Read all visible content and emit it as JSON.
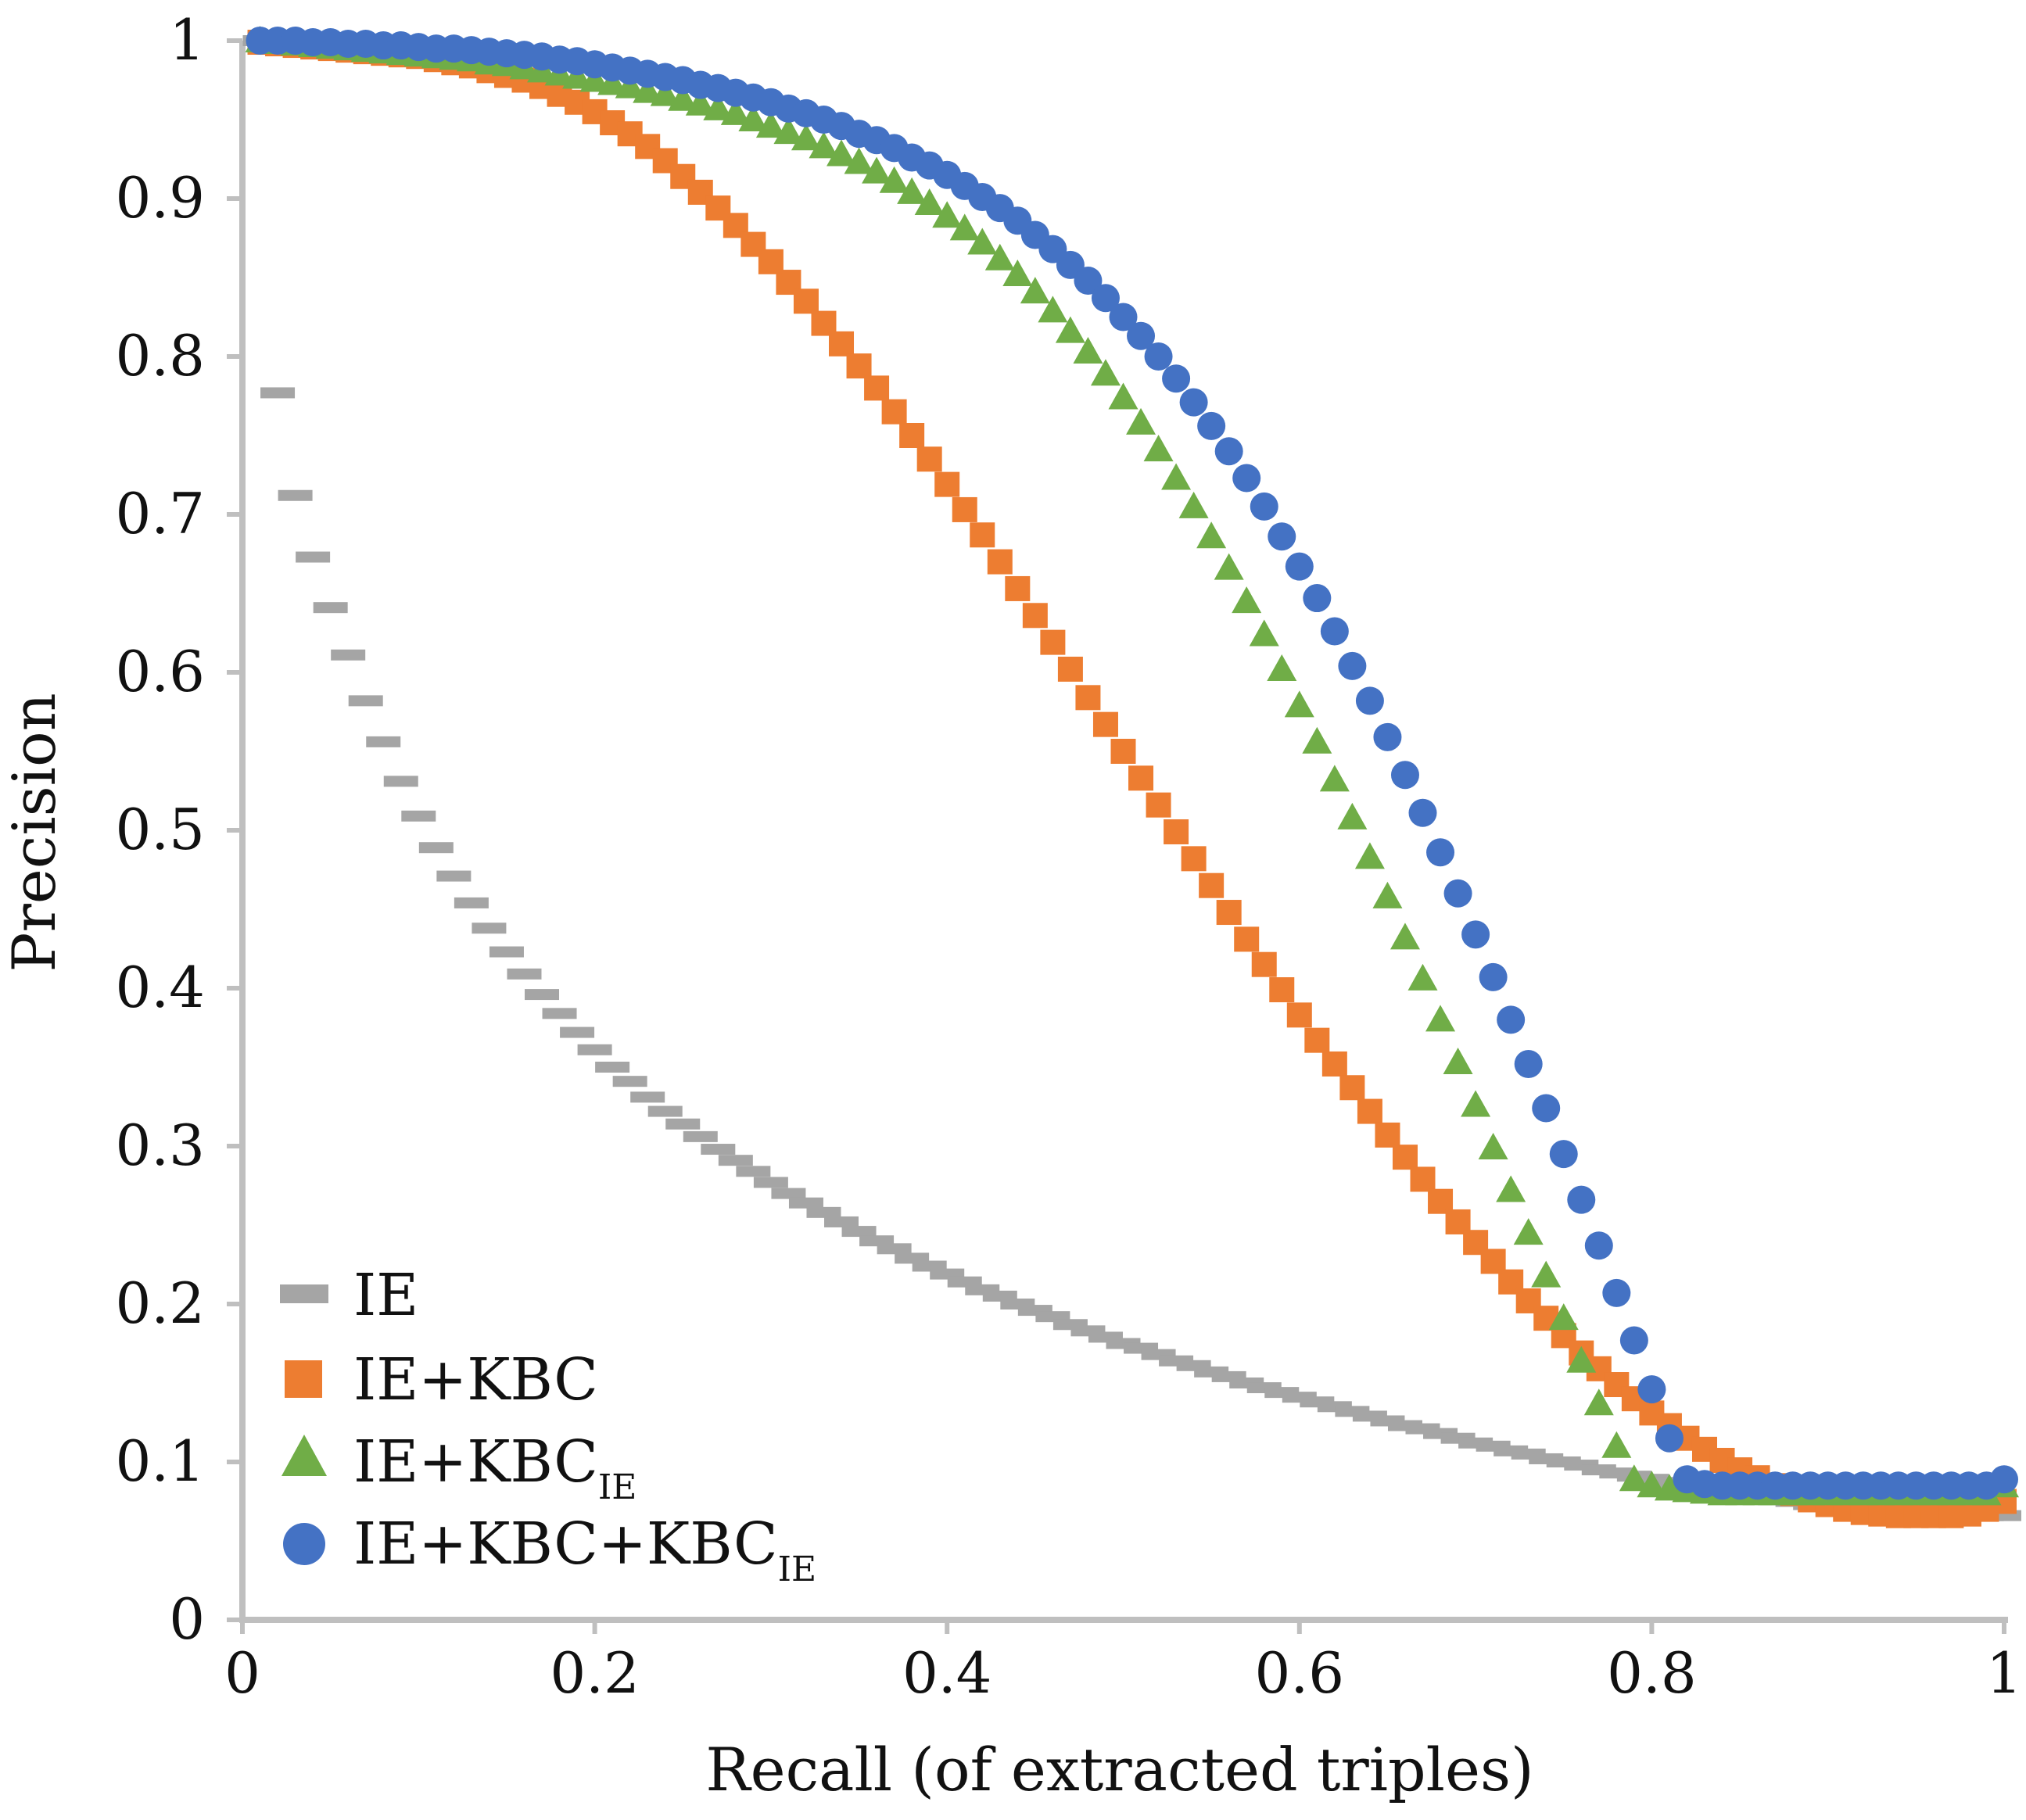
{
  "chart_data": {
    "type": "scatter",
    "title": "",
    "xlabel": "Recall (of extracted triples)",
    "ylabel": "Precision",
    "xlim": [
      0,
      1
    ],
    "ylim": [
      0,
      1
    ],
    "x_ticks": [
      0,
      0.2,
      0.4,
      0.6,
      0.8,
      1
    ],
    "y_ticks": [
      0,
      0.1,
      0.2,
      0.3,
      0.4,
      0.5,
      0.6,
      0.7,
      0.8,
      0.9,
      1
    ],
    "x_tick_labels": [
      "0",
      "0.2",
      "0.4",
      "0.6",
      "0.8",
      "1"
    ],
    "y_tick_labels": [
      "0",
      "0.1",
      "0.2",
      "0.3",
      "0.4",
      "0.5",
      "0.6",
      "0.7",
      "0.8",
      "0.9",
      "1"
    ],
    "grid": false,
    "legend_position": "bottom-left",
    "x": [
      0.01,
      0.02,
      0.03,
      0.04,
      0.05,
      0.06,
      0.07,
      0.08,
      0.09,
      0.1,
      0.11,
      0.12,
      0.13,
      0.14,
      0.15,
      0.16,
      0.17,
      0.18,
      0.19,
      0.2,
      0.21,
      0.22,
      0.23,
      0.24,
      0.25,
      0.26,
      0.27,
      0.28,
      0.29,
      0.3,
      0.31,
      0.32,
      0.33,
      0.34,
      0.35,
      0.36,
      0.37,
      0.38,
      0.39,
      0.4,
      0.41,
      0.42,
      0.43,
      0.44,
      0.45,
      0.46,
      0.47,
      0.48,
      0.49,
      0.5,
      0.51,
      0.52,
      0.53,
      0.54,
      0.55,
      0.56,
      0.57,
      0.58,
      0.59,
      0.6,
      0.61,
      0.62,
      0.63,
      0.64,
      0.65,
      0.66,
      0.67,
      0.68,
      0.69,
      0.7,
      0.71,
      0.72,
      0.73,
      0.74,
      0.75,
      0.76,
      0.77,
      0.78,
      0.79,
      0.8,
      0.81,
      0.82,
      0.83,
      0.84,
      0.85,
      0.86,
      0.87,
      0.88,
      0.89,
      0.9,
      0.91,
      0.92,
      0.93,
      0.94,
      0.95,
      0.96,
      0.97,
      0.98,
      0.99,
      1.0
    ],
    "series": [
      {
        "name": "IE",
        "marker": "dash",
        "color": "#a5a5a5",
        "values": [
          1.0,
          0.777,
          0.712,
          0.673,
          0.641,
          0.611,
          0.582,
          0.556,
          0.531,
          0.509,
          0.489,
          0.471,
          0.454,
          0.438,
          0.423,
          0.409,
          0.396,
          0.384,
          0.372,
          0.361,
          0.35,
          0.341,
          0.331,
          0.322,
          0.314,
          0.306,
          0.298,
          0.291,
          0.284,
          0.277,
          0.27,
          0.264,
          0.258,
          0.252,
          0.246,
          0.24,
          0.235,
          0.229,
          0.224,
          0.219,
          0.214,
          0.209,
          0.205,
          0.2,
          0.196,
          0.192,
          0.187,
          0.183,
          0.179,
          0.175,
          0.172,
          0.168,
          0.164,
          0.161,
          0.157,
          0.154,
          0.15,
          0.147,
          0.144,
          0.141,
          0.138,
          0.135,
          0.132,
          0.129,
          0.126,
          0.123,
          0.121,
          0.118,
          0.115,
          0.112,
          0.11,
          0.107,
          0.105,
          0.102,
          0.1,
          0.098,
          0.095,
          0.093,
          0.091,
          0.089,
          0.087,
          0.085,
          0.083,
          0.081,
          0.08,
          0.078,
          0.076,
          0.075,
          0.073,
          0.072,
          0.071,
          0.07,
          0.069,
          0.068,
          0.068,
          0.067,
          0.067,
          0.066,
          0.066,
          0.066
        ]
      },
      {
        "name": "IE+KBC",
        "marker": "square",
        "color": "#ed7d31",
        "values": [
          0.999,
          0.998,
          0.997,
          0.996,
          0.995,
          0.994,
          0.993,
          0.992,
          0.991,
          0.99,
          0.988,
          0.986,
          0.984,
          0.981,
          0.978,
          0.975,
          0.971,
          0.966,
          0.961,
          0.955,
          0.948,
          0.941,
          0.933,
          0.924,
          0.914,
          0.904,
          0.894,
          0.883,
          0.871,
          0.86,
          0.847,
          0.835,
          0.821,
          0.808,
          0.794,
          0.78,
          0.765,
          0.75,
          0.735,
          0.719,
          0.703,
          0.687,
          0.67,
          0.653,
          0.636,
          0.619,
          0.602,
          0.584,
          0.567,
          0.55,
          0.533,
          0.516,
          0.499,
          0.482,
          0.465,
          0.448,
          0.431,
          0.415,
          0.399,
          0.383,
          0.367,
          0.352,
          0.337,
          0.322,
          0.307,
          0.293,
          0.279,
          0.265,
          0.252,
          0.239,
          0.227,
          0.214,
          0.202,
          0.191,
          0.18,
          0.169,
          0.159,
          0.149,
          0.14,
          0.131,
          0.123,
          0.115,
          0.108,
          0.101,
          0.095,
          0.09,
          0.085,
          0.08,
          0.076,
          0.073,
          0.07,
          0.068,
          0.067,
          0.066,
          0.066,
          0.066,
          0.066,
          0.067,
          0.07,
          0.075
        ]
      },
      {
        "name": "IE+KBC_IE",
        "marker": "triangle",
        "color": "#70ad47",
        "values": [
          1.0,
          0.999,
          0.998,
          0.997,
          0.996,
          0.995,
          0.994,
          0.993,
          0.992,
          0.991,
          0.99,
          0.989,
          0.988,
          0.986,
          0.985,
          0.983,
          0.981,
          0.979,
          0.977,
          0.975,
          0.973,
          0.971,
          0.968,
          0.966,
          0.963,
          0.96,
          0.957,
          0.954,
          0.95,
          0.946,
          0.942,
          0.938,
          0.933,
          0.928,
          0.923,
          0.917,
          0.911,
          0.904,
          0.897,
          0.889,
          0.881,
          0.872,
          0.862,
          0.852,
          0.841,
          0.829,
          0.816,
          0.803,
          0.789,
          0.774,
          0.758,
          0.741,
          0.723,
          0.705,
          0.686,
          0.666,
          0.645,
          0.624,
          0.602,
          0.579,
          0.556,
          0.532,
          0.508,
          0.483,
          0.458,
          0.432,
          0.406,
          0.38,
          0.353,
          0.326,
          0.299,
          0.272,
          0.245,
          0.218,
          0.191,
          0.164,
          0.137,
          0.11,
          0.089,
          0.085,
          0.083,
          0.082,
          0.081,
          0.08,
          0.08,
          0.08,
          0.08,
          0.08,
          0.08,
          0.08,
          0.08,
          0.08,
          0.08,
          0.08,
          0.08,
          0.08,
          0.08,
          0.08,
          0.08,
          0.085
        ]
      },
      {
        "name": "IE+KBC+KBC_IE",
        "marker": "circle",
        "color": "#4472c4",
        "values": [
          1.0,
          1.0,
          1.0,
          0.999,
          0.999,
          0.998,
          0.998,
          0.997,
          0.997,
          0.996,
          0.995,
          0.995,
          0.994,
          0.993,
          0.992,
          0.991,
          0.99,
          0.988,
          0.987,
          0.985,
          0.983,
          0.981,
          0.979,
          0.977,
          0.975,
          0.972,
          0.97,
          0.967,
          0.964,
          0.961,
          0.957,
          0.954,
          0.95,
          0.946,
          0.941,
          0.937,
          0.932,
          0.926,
          0.921,
          0.915,
          0.908,
          0.901,
          0.894,
          0.886,
          0.877,
          0.868,
          0.858,
          0.848,
          0.837,
          0.825,
          0.813,
          0.8,
          0.786,
          0.771,
          0.756,
          0.74,
          0.723,
          0.705,
          0.686,
          0.667,
          0.647,
          0.626,
          0.604,
          0.582,
          0.559,
          0.535,
          0.511,
          0.486,
          0.46,
          0.434,
          0.407,
          0.38,
          0.352,
          0.324,
          0.295,
          0.266,
          0.237,
          0.207,
          0.177,
          0.146,
          0.115,
          0.089,
          0.086,
          0.085,
          0.085,
          0.085,
          0.085,
          0.085,
          0.085,
          0.085,
          0.085,
          0.085,
          0.085,
          0.085,
          0.085,
          0.085,
          0.085,
          0.085,
          0.085,
          0.089
        ]
      }
    ]
  },
  "legend": {
    "items": [
      {
        "main": "IE",
        "sub": ""
      },
      {
        "main": "IE+KBC",
        "sub": ""
      },
      {
        "main": "IE+KBC",
        "sub": "IE"
      },
      {
        "main": "IE+KBC+KBC",
        "sub": "IE"
      }
    ]
  }
}
